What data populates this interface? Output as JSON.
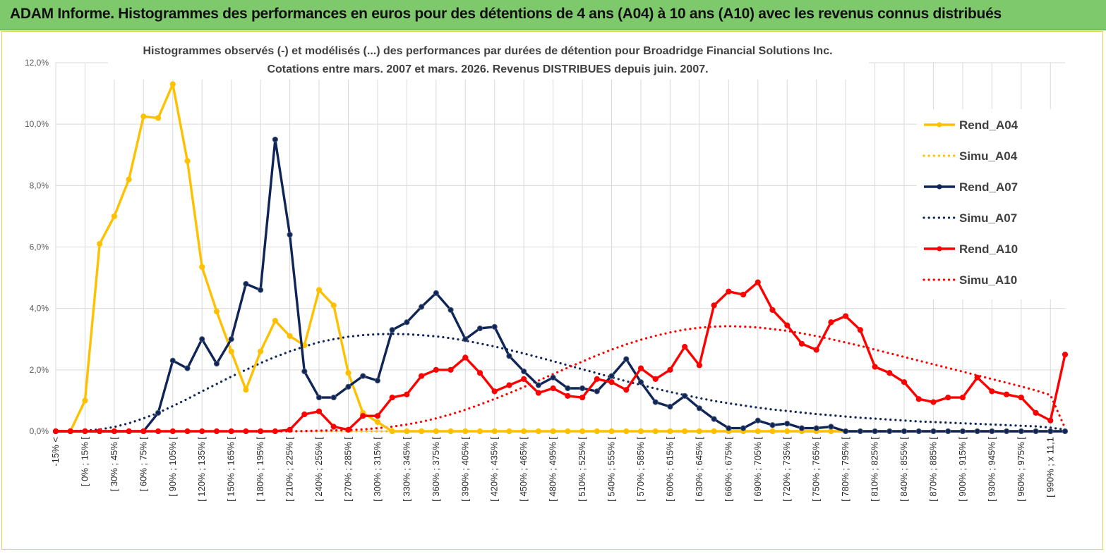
{
  "banner": {
    "title": "ADAM Informe. Histogrammes des performances en euros pour des détentions de 4 ans (A04) à 10 ans (A10) avec les revenus connus distribués"
  },
  "colors": {
    "banner_bg": "#7ec96c",
    "a04": "#ffc000",
    "a07": "#0f2557",
    "a10": "#ff0000",
    "grid": "#d9d9d9"
  },
  "chart_data": {
    "type": "line",
    "title_line1": "Histogrammes observés (-) et modélisés (...) des performances par durées de détention pour Broadridge Financial Solutions Inc.",
    "title_line2": "Cotations entre mars. 2007 et mars. 2026. Revenus DISTRIBUES depuis juin. 2007.",
    "xlabel": "",
    "ylabel": "",
    "ylim": [
      0,
      12
    ],
    "yunit": "%",
    "yticks": [
      "0,0%",
      "2,0%",
      "4,0%",
      "6,0%",
      "8,0%",
      "10,0%",
      "12,0%"
    ],
    "xticks": [
      "-15% <",
      "[ 0% ; 15% [",
      "[ 30% ; 45% [",
      "[ 60% ; 75% [",
      "[ 90% ; 105% [",
      "[ 120% ; 135% [",
      "[ 150% ; 165% [",
      "[ 180% ; 195% [",
      "[ 210% ; 225% [",
      "[ 240% ; 255% [",
      "[ 270% ; 285% [",
      "[ 300% ; 315% [",
      "[ 330% ; 345% [",
      "[ 360% ; 375% [",
      "[ 390% ; 405% [",
      "[ 420% ; 435% [",
      "[ 450% ; 465% [",
      "[ 480% ; 495% [",
      "[ 510% ; 525% [",
      "[ 540% ; 555% [",
      "[ 570% ; 585% [",
      "[ 600% ; 615% [",
      "[ 630% ; 645% [",
      "[ 660% ; 675% [",
      "[ 690% ; 705% [",
      "[ 720% ; 735% [",
      "[ 750% ; 765% [",
      "[ 780% ; 795% [",
      "[ 810% ; 825% [",
      "[ 840% ; 855% [",
      "[ 870% ; 885% [",
      "[ 900% ; 915% [",
      "[ 930% ; 945% [",
      "[ 960% ; 975% [",
      "[ 990% ; x 11,1"
    ],
    "n_points": 70,
    "legend_position": "right",
    "series": [
      {
        "name": "Rend_A04",
        "style": "solid",
        "color": "#ffc000",
        "values": [
          0,
          0,
          1.0,
          6.1,
          7.0,
          8.2,
          10.25,
          10.2,
          11.3,
          8.8,
          5.35,
          3.9,
          2.6,
          1.35,
          2.6,
          3.6,
          3.1,
          2.8,
          4.6,
          4.1,
          1.9,
          0.6,
          0.3,
          0,
          0,
          0,
          0,
          0,
          0,
          0,
          0,
          0,
          0,
          0,
          0,
          0,
          0,
          0,
          0,
          0,
          0,
          0,
          0,
          0,
          0,
          0,
          0,
          0,
          0,
          0,
          0,
          0,
          0,
          0,
          0,
          0,
          0,
          0,
          0,
          0,
          0,
          0,
          0,
          0,
          0,
          0,
          0,
          0,
          0,
          0
        ]
      },
      {
        "name": "Simu_A04",
        "style": "dotted",
        "color": "#ffc000",
        "values": [
          0,
          0,
          0,
          0,
          0,
          0,
          0,
          0,
          0,
          0,
          0,
          0,
          0,
          0,
          0,
          0,
          0,
          0,
          0,
          0,
          0,
          0,
          0,
          0,
          0,
          0,
          0,
          0,
          0,
          0,
          0,
          0,
          0,
          0,
          0,
          0,
          0,
          0,
          0,
          0,
          0,
          0,
          0,
          0,
          0,
          0,
          0,
          0,
          0,
          0,
          0,
          0,
          0,
          0,
          0,
          0,
          0,
          0,
          0,
          0,
          0,
          0,
          0,
          0,
          0,
          0,
          0,
          0,
          0,
          0
        ]
      },
      {
        "name": "Rend_A07",
        "style": "solid",
        "color": "#0f2557",
        "values": [
          0,
          0,
          0,
          0,
          0,
          0,
          0,
          0.6,
          2.3,
          2.05,
          3.0,
          2.2,
          3.0,
          4.8,
          4.6,
          9.5,
          6.4,
          1.95,
          1.1,
          1.1,
          1.45,
          1.8,
          1.65,
          3.3,
          3.55,
          4.05,
          4.5,
          3.95,
          3.0,
          3.35,
          3.4,
          2.45,
          1.95,
          1.5,
          1.75,
          1.4,
          1.4,
          1.3,
          1.8,
          2.35,
          1.6,
          0.95,
          0.8,
          1.15,
          0.75,
          0.4,
          0.1,
          0.1,
          0.35,
          0.2,
          0.25,
          0.1,
          0.1,
          0.15,
          0,
          0,
          0,
          0,
          0,
          0,
          0,
          0,
          0,
          0,
          0,
          0,
          0,
          0,
          0,
          0
        ]
      },
      {
        "name": "Simu_A07",
        "style": "dotted",
        "color": "#0f2557",
        "values": [
          0,
          0,
          0.02,
          0.06,
          0.14,
          0.26,
          0.42,
          0.6,
          0.82,
          1.05,
          1.3,
          1.54,
          1.78,
          2.0,
          2.22,
          2.42,
          2.6,
          2.76,
          2.9,
          3.0,
          3.08,
          3.13,
          3.16,
          3.17,
          3.16,
          3.13,
          3.09,
          3.03,
          2.95,
          2.86,
          2.76,
          2.65,
          2.53,
          2.41,
          2.28,
          2.15,
          2.02,
          1.89,
          1.76,
          1.63,
          1.51,
          1.39,
          1.28,
          1.18,
          1.08,
          0.99,
          0.91,
          0.84,
          0.77,
          0.71,
          0.66,
          0.61,
          0.56,
          0.52,
          0.48,
          0.44,
          0.41,
          0.38,
          0.35,
          0.32,
          0.3,
          0.28,
          0.26,
          0.24,
          0.22,
          0.2,
          0.18,
          0.16,
          0.12,
          0.05
        ]
      },
      {
        "name": "Rend_A10",
        "style": "solid",
        "color": "#ff0000",
        "values": [
          0,
          0,
          0,
          0,
          0,
          0,
          0,
          0,
          0,
          0,
          0,
          0,
          0,
          0,
          0,
          0,
          0.05,
          0.55,
          0.65,
          0.15,
          0.05,
          0.5,
          0.5,
          1.1,
          1.2,
          1.8,
          2.0,
          2.0,
          2.4,
          1.9,
          1.3,
          1.5,
          1.7,
          1.25,
          1.4,
          1.15,
          1.1,
          1.7,
          1.6,
          1.35,
          2.05,
          1.7,
          2.0,
          2.75,
          2.15,
          4.1,
          4.55,
          4.45,
          4.85,
          3.95,
          3.45,
          2.85,
          2.65,
          3.55,
          3.75,
          3.3,
          2.1,
          1.9,
          1.6,
          1.05,
          0.95,
          1.1,
          1.1,
          1.75,
          1.3,
          1.2,
          1.1,
          0.6,
          0.35,
          2.5
        ]
      },
      {
        "name": "Simu_A10",
        "style": "dotted",
        "color": "#ff0000",
        "values": [
          0,
          0,
          0,
          0,
          0,
          0,
          0,
          0,
          0,
          0,
          0,
          0,
          0,
          0,
          0,
          0,
          0,
          0.01,
          0.02,
          0.03,
          0.04,
          0.06,
          0.1,
          0.15,
          0.22,
          0.31,
          0.42,
          0.55,
          0.7,
          0.87,
          1.05,
          1.24,
          1.44,
          1.65,
          1.86,
          2.07,
          2.27,
          2.47,
          2.66,
          2.83,
          2.98,
          3.11,
          3.22,
          3.31,
          3.37,
          3.41,
          3.42,
          3.41,
          3.38,
          3.33,
          3.27,
          3.19,
          3.1,
          3.0,
          2.89,
          2.78,
          2.66,
          2.54,
          2.42,
          2.3,
          2.18,
          2.06,
          1.94,
          1.82,
          1.7,
          1.58,
          1.46,
          1.33,
          1.18,
          0.1
        ]
      }
    ]
  }
}
